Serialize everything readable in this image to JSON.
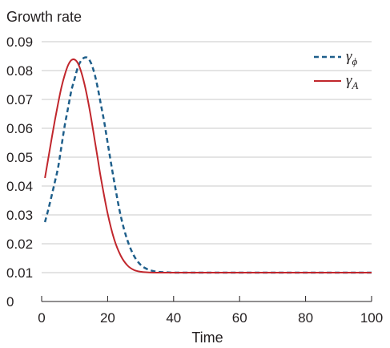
{
  "chart_data": {
    "type": "line",
    "title": "",
    "ylabel": "Growth rate",
    "xlabel": "Time",
    "xlim": [
      0,
      100
    ],
    "ylim": [
      0,
      0.09
    ],
    "xticks": [
      0,
      20,
      40,
      60,
      80,
      100
    ],
    "yticks": [
      0,
      0.01,
      0.02,
      0.03,
      0.04,
      0.05,
      0.06,
      0.07,
      0.08,
      0.09
    ],
    "ytick_labels": [
      "0",
      "0.01",
      "0.02",
      "0.03",
      "0.04",
      "0.05",
      "0.06",
      "0.07",
      "0.08",
      "0.09"
    ],
    "grid": "horizontal",
    "legend_position": "top-right",
    "series": [
      {
        "name": "γ_ϕ",
        "legend_symbol": "γ",
        "legend_subscript": "ϕ",
        "color": "#1f5f8b",
        "style": "dashed",
        "x": [
          1,
          2,
          3,
          4,
          5,
          6,
          7,
          8,
          9,
          10,
          11,
          12,
          13,
          14,
          15,
          16,
          17,
          18,
          19,
          20,
          22,
          24,
          26,
          28,
          30,
          32,
          34,
          36,
          38,
          40,
          45,
          50,
          60,
          70,
          80,
          90,
          100
        ],
        "y": [
          0.0275,
          0.0318,
          0.0365,
          0.0414,
          0.0465,
          0.0537,
          0.061,
          0.067,
          0.073,
          0.0772,
          0.0812,
          0.0835,
          0.0845,
          0.0843,
          0.0825,
          0.079,
          0.074,
          0.068,
          0.062,
          0.055,
          0.0415,
          0.0295,
          0.0212,
          0.0158,
          0.0127,
          0.0112,
          0.0105,
          0.0102,
          0.0101,
          0.01,
          0.01,
          0.01,
          0.01,
          0.01,
          0.01,
          0.01,
          0.01
        ]
      },
      {
        "name": "γ_A",
        "legend_symbol": "γ",
        "legend_subscript": "A",
        "color": "#c1272d",
        "style": "solid",
        "x": [
          1,
          2,
          3,
          4,
          5,
          6,
          7,
          8,
          9,
          10,
          11,
          12,
          13,
          14,
          15,
          16,
          17,
          18,
          20,
          22,
          24,
          26,
          28,
          30,
          32,
          34,
          36,
          38,
          40,
          45,
          50,
          60,
          70,
          80,
          90,
          100
        ],
        "y": [
          0.0428,
          0.0495,
          0.0562,
          0.0627,
          0.0687,
          0.0742,
          0.0785,
          0.0818,
          0.0836,
          0.0838,
          0.0825,
          0.0795,
          0.0752,
          0.0698,
          0.0635,
          0.0565,
          0.0495,
          0.0425,
          0.0305,
          0.0215,
          0.0158,
          0.0125,
          0.0109,
          0.0103,
          0.0101,
          0.01,
          0.01,
          0.01,
          0.01,
          0.01,
          0.01,
          0.01,
          0.01,
          0.01,
          0.01,
          0.01
        ]
      }
    ]
  }
}
